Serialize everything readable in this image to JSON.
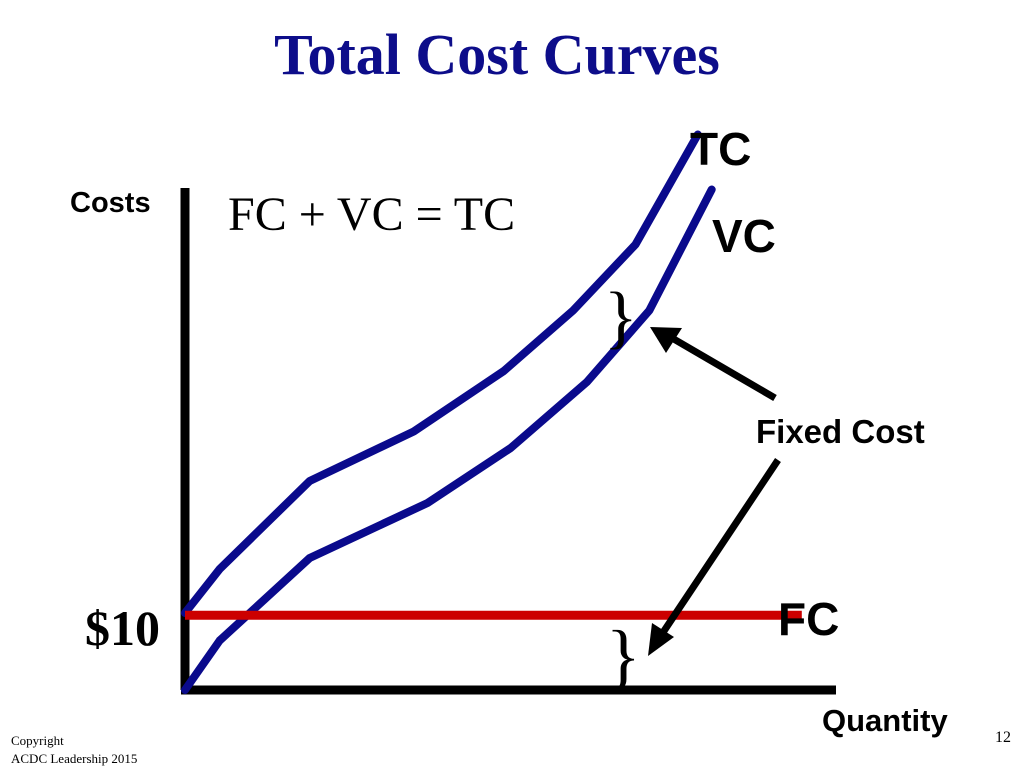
{
  "slide": {
    "title": "Total Cost Curves",
    "equation": "FC + VC = TC",
    "annotation": "Fixed Cost",
    "brace_glyph": "}",
    "footer_copyright_line1": "Copyright",
    "footer_copyright_line2": "ACDC Leadership 2015",
    "page_number": "12"
  },
  "colors": {
    "title": "#0d0d8a",
    "curves": "#0a0a8c",
    "fixed_cost_line": "#cc0000",
    "axes": "#000000",
    "text": "#000000"
  },
  "chart_data": {
    "type": "line",
    "title": "Total Cost Curves",
    "xlabel": "Quantity",
    "ylabel": "Costs",
    "xlim": [
      0,
      100
    ],
    "ylim": [
      0,
      100
    ],
    "grid": false,
    "y_ticks": [
      {
        "value": 13.6,
        "label": "$10"
      }
    ],
    "series": [
      {
        "name": "TC",
        "color": "#0a0a8c",
        "points": [
          [
            0,
            14
          ],
          [
            5,
            22
          ],
          [
            18,
            38
          ],
          [
            33,
            47
          ],
          [
            46,
            58
          ],
          [
            56,
            69
          ],
          [
            65,
            81
          ],
          [
            74,
            101
          ]
        ]
      },
      {
        "name": "VC",
        "color": "#0a0a8c",
        "points": [
          [
            0,
            0
          ],
          [
            5,
            9
          ],
          [
            18,
            24
          ],
          [
            35,
            34
          ],
          [
            47,
            44
          ],
          [
            58,
            56
          ],
          [
            67,
            69
          ],
          [
            76,
            91
          ]
        ]
      },
      {
        "name": "FC",
        "color": "#cc0000",
        "points": [
          [
            0,
            13.6
          ],
          [
            89,
            13.6
          ]
        ]
      }
    ]
  }
}
